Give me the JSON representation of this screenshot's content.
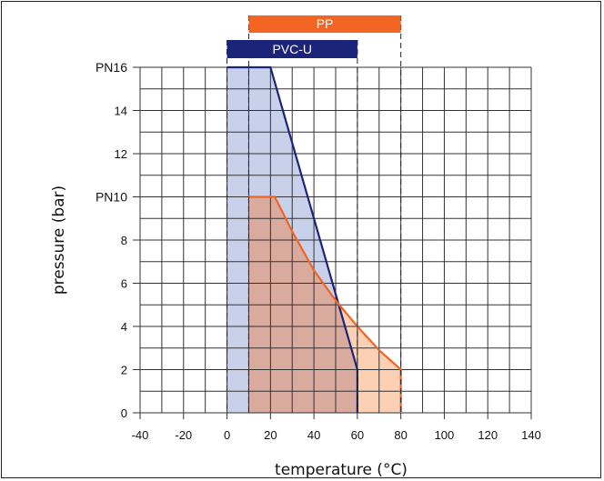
{
  "chart_data": {
    "type": "area",
    "xlabel": "temperature (°C)",
    "ylabel": "pressure (bar)",
    "xlim": [
      -40,
      140
    ],
    "ylim": [
      0,
      16
    ],
    "x_ticks": [
      -40,
      -20,
      0,
      20,
      40,
      60,
      80,
      100,
      120,
      140
    ],
    "y_ticks": [
      {
        "value": 0,
        "label": "0"
      },
      {
        "value": 2,
        "label": "2"
      },
      {
        "value": 4,
        "label": "4"
      },
      {
        "value": 6,
        "label": "6"
      },
      {
        "value": 8,
        "label": "8"
      },
      {
        "value": 10,
        "label": "PN10"
      },
      {
        "value": 12,
        "label": "12"
      },
      {
        "value": 14,
        "label": "14"
      },
      {
        "value": 16,
        "label": "PN16"
      }
    ],
    "grid": true,
    "series": [
      {
        "name": "PVC-U",
        "color": "#1c2479",
        "fill": "#c9d1ea",
        "range": [
          0,
          60
        ],
        "x": [
          0,
          20,
          60,
          60
        ],
        "y": [
          16,
          16,
          2,
          0
        ]
      },
      {
        "name": "PP",
        "color": "#f26522",
        "fill": "#fcd0b2",
        "range": [
          10,
          80
        ],
        "x": [
          10,
          22,
          30,
          40,
          50,
          60,
          70,
          80,
          80
        ],
        "y": [
          10,
          10,
          8.4,
          6.6,
          5.2,
          4,
          2.9,
          2,
          0
        ]
      }
    ],
    "overlap_fill": "#d9aa9e"
  }
}
